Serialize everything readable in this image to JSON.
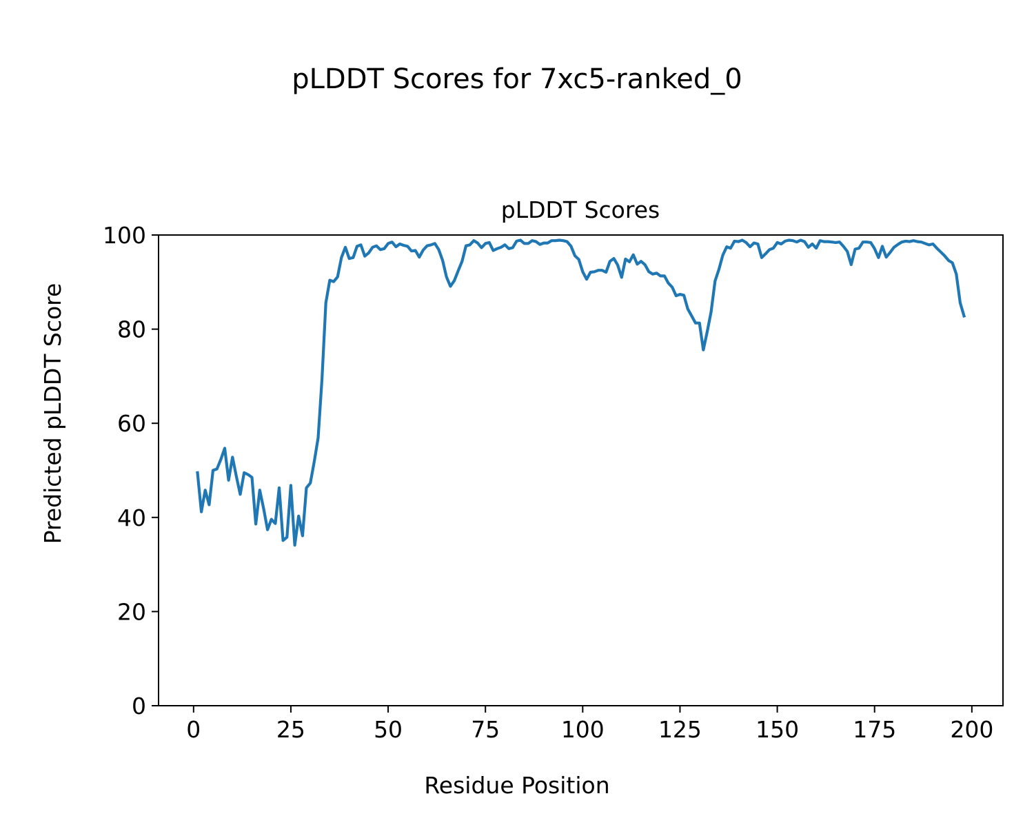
{
  "figure": {
    "suptitle": "pLDDT Scores for 7xc5-ranked_0"
  },
  "chart_data": {
    "type": "line",
    "title": "pLDDT Scores",
    "xlabel": "Residue Position",
    "ylabel": "Predicted pLDDT Score",
    "xlim": [
      -9,
      208
    ],
    "ylim": [
      0,
      100
    ],
    "xticks": [
      0,
      25,
      50,
      75,
      100,
      125,
      150,
      175,
      200
    ],
    "yticks": [
      0,
      20,
      40,
      60,
      80,
      100
    ],
    "grid": false,
    "line_color": "#1f77b4",
    "series": [
      {
        "x": [
          1,
          2,
          3,
          4,
          5,
          6,
          7,
          8,
          9,
          10,
          11,
          12,
          13,
          14,
          15,
          16,
          17,
          18,
          19,
          20,
          21,
          22,
          23,
          24,
          25,
          26,
          27,
          28,
          29,
          30,
          31,
          32,
          33,
          34,
          35,
          36,
          37,
          38,
          39,
          40,
          41,
          42,
          43,
          44,
          45,
          46,
          47,
          48,
          49,
          50,
          51,
          52,
          53,
          54,
          55,
          56,
          57,
          58,
          59,
          60,
          61,
          62,
          63,
          64,
          65,
          66,
          67,
          68,
          69,
          70,
          71,
          72,
          73,
          74,
          75,
          76,
          77,
          78,
          79,
          80,
          81,
          82,
          83,
          84,
          85,
          86,
          87,
          88,
          89,
          90,
          91,
          92,
          93,
          94,
          95,
          96,
          97,
          98,
          99,
          100,
          101,
          102,
          103,
          104,
          105,
          106,
          107,
          108,
          109,
          110,
          111,
          112,
          113,
          114,
          115,
          116,
          117,
          118,
          119,
          120,
          121,
          122,
          123,
          124,
          125,
          126,
          127,
          128,
          129,
          130,
          131,
          132,
          133,
          134,
          135,
          136,
          137,
          138,
          139,
          140,
          141,
          142,
          143,
          144,
          145,
          146,
          147,
          148,
          149,
          150,
          151,
          152,
          153,
          154,
          155,
          156,
          157,
          158,
          159,
          160,
          161,
          162,
          163,
          164,
          165,
          166,
          167,
          168,
          169,
          170,
          171,
          172,
          173,
          174,
          175,
          176,
          177,
          178,
          179,
          180,
          181,
          182,
          183,
          184,
          185,
          186,
          187,
          188,
          189,
          190,
          191,
          192,
          193,
          194,
          195,
          196,
          197,
          198
        ],
        "y": [
          49.5,
          41.2,
          45.8,
          42.7,
          50.0,
          50.3,
          52.3,
          54.7,
          47.9,
          52.8,
          48.7,
          44.9,
          49.5,
          49.1,
          48.5,
          38.6,
          45.8,
          41.9,
          37.4,
          39.6,
          38.7,
          46.3,
          35.1,
          35.8,
          46.8,
          34.1,
          40.3,
          36.1,
          46.3,
          47.3,
          51.8,
          56.9,
          69.4,
          85.6,
          90.4,
          90.1,
          91.1,
          95.2,
          97.4,
          95.0,
          95.2,
          97.6,
          97.9,
          95.5,
          96.2,
          97.4,
          97.7,
          96.9,
          97.1,
          98.2,
          98.5,
          97.5,
          98.1,
          97.8,
          97.6,
          96.6,
          96.7,
          95.3,
          96.8,
          97.7,
          97.9,
          98.2,
          96.9,
          94.6,
          91.1,
          89.1,
          90.3,
          92.4,
          94.4,
          97.7,
          97.9,
          98.8,
          98.3,
          97.3,
          98.2,
          98.4,
          96.7,
          97.1,
          97.4,
          97.9,
          97.1,
          97.3,
          98.7,
          98.9,
          98.2,
          98.2,
          98.8,
          98.6,
          98.0,
          98.3,
          98.3,
          98.8,
          98.8,
          98.9,
          98.8,
          98.6,
          97.6,
          95.6,
          94.8,
          92.2,
          90.6,
          92.1,
          92.2,
          92.5,
          92.5,
          92.1,
          94.4,
          95.0,
          93.6,
          91.0,
          94.9,
          94.3,
          95.8,
          93.8,
          94.4,
          93.7,
          92.2,
          91.7,
          91.9,
          91.3,
          91.3,
          89.8,
          88.9,
          87.1,
          87.4,
          87.2,
          84.3,
          82.8,
          81.3,
          81.3,
          75.6,
          79.5,
          83.7,
          90.2,
          92.7,
          95.7,
          97.5,
          97.2,
          98.7,
          98.6,
          98.9,
          98.4,
          97.5,
          98.3,
          98.1,
          95.2,
          96.0,
          96.9,
          97.2,
          98.4,
          98.1,
          98.7,
          98.9,
          98.8,
          98.5,
          98.9,
          98.6,
          97.4,
          98.1,
          97.2,
          98.8,
          98.6,
          98.6,
          98.5,
          98.4,
          98.5,
          97.6,
          96.5,
          93.7,
          97.0,
          97.2,
          98.5,
          98.5,
          98.4,
          97.1,
          95.2,
          97.6,
          95.3,
          96.3,
          97.4,
          98.0,
          98.5,
          98.7,
          98.6,
          98.8,
          98.6,
          98.5,
          98.2,
          97.9,
          98.1,
          97.2,
          96.4,
          95.6,
          94.6,
          94.1,
          91.7,
          85.6,
          82.8
        ]
      }
    ]
  }
}
